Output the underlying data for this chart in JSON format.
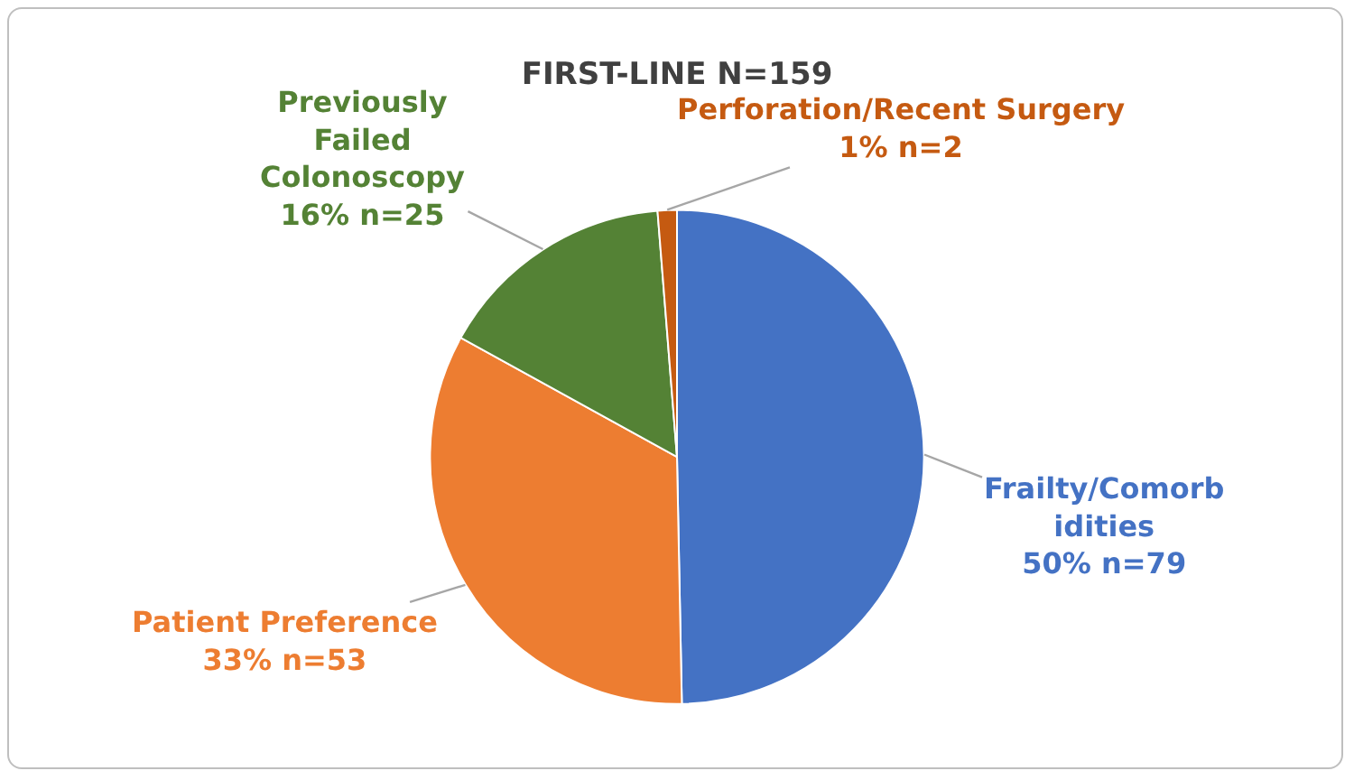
{
  "chart_data": {
    "type": "pie",
    "title": "FIRST-LINE N=159",
    "categories": [
      "Frailty/Comorbidities",
      "Patient Preference",
      "Previously Failed Colonoscopy",
      "Perforation/Recent Surgery"
    ],
    "values": [
      79,
      53,
      25,
      2
    ],
    "colors": [
      "#4472c4",
      "#ed7d31",
      "#548235",
      "#c55a11"
    ],
    "value_labels": [
      "50% n=79",
      "33% n=53",
      "16% n=25",
      "1% n=2"
    ],
    "legend": false
  }
}
